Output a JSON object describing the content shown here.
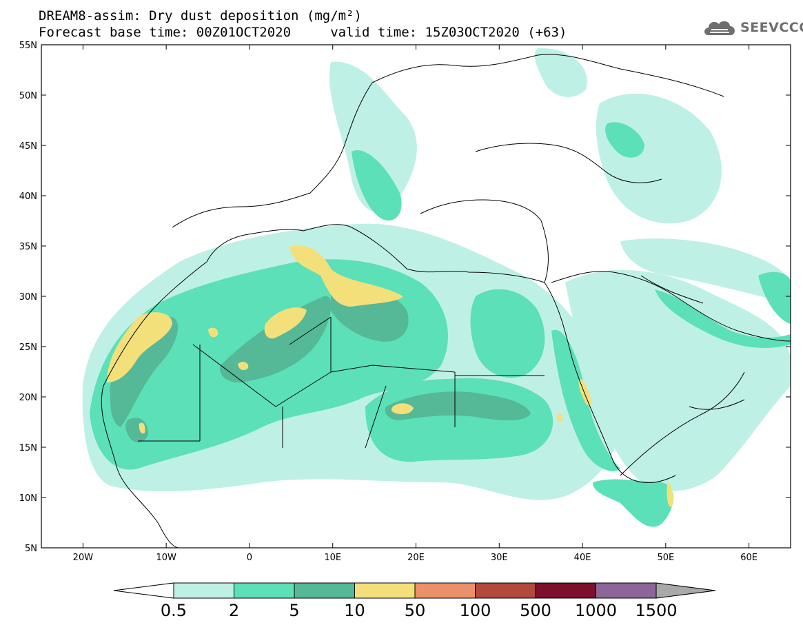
{
  "header": {
    "line1": "DREAM8-assim: Dry dust deposition (mg/m²)",
    "line2": "Forecast base time: 00Z01OCT2020     valid time: 15Z03OCT2020 (+63)"
  },
  "logo": {
    "text": "SEEVCCC",
    "icon": "cloud-icon"
  },
  "map": {
    "lat_labels": [
      "55N",
      "50N",
      "45N",
      "40N",
      "35N",
      "30N",
      "25N",
      "20N",
      "15N",
      "10N",
      "5N"
    ],
    "lon_labels": [
      "20W",
      "10W",
      "0",
      "10E",
      "20E",
      "30E",
      "40E",
      "50E",
      "60E"
    ],
    "lat_range": [
      5,
      55
    ],
    "lon_range": [
      -25,
      65
    ]
  },
  "colorbar": {
    "levels": [
      "0.5",
      "2",
      "5",
      "10",
      "50",
      "100",
      "500",
      "1000",
      "1500"
    ],
    "colors": [
      "#ffffff",
      "#bff0e6",
      "#5ce0b8",
      "#55b896",
      "#f4e07a",
      "#eb9068",
      "#b2493c",
      "#7d0f2c",
      "#8c6698",
      "#a9a9a9"
    ]
  }
}
